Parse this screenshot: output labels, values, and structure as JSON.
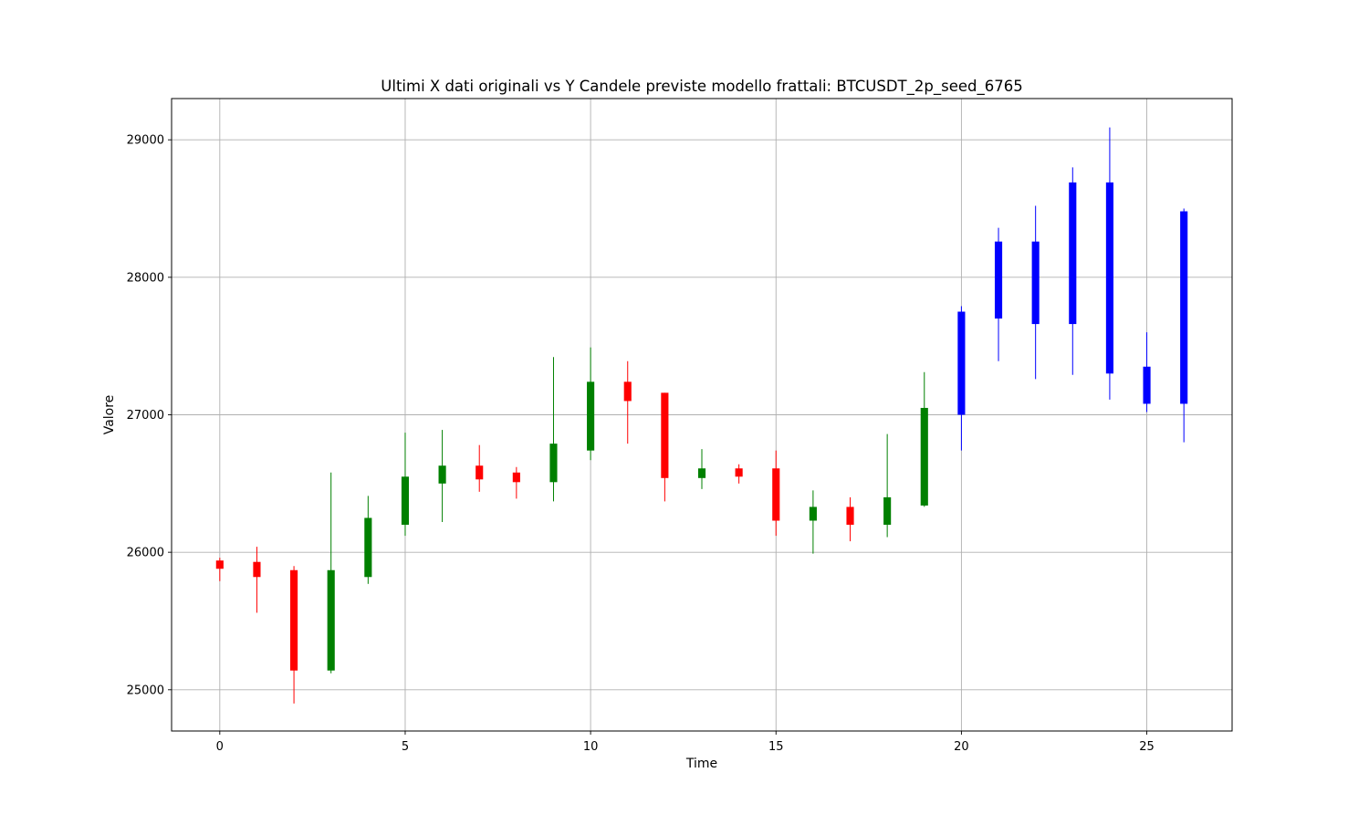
{
  "chart_data": {
    "type": "candlestick",
    "title": "Ultimi X dati originali vs Y Candele previste modello frattali: BTCUSDT_2p_seed_6765",
    "xlabel": "Time",
    "ylabel": "Valore",
    "xlim": [
      -1.3,
      27.3
    ],
    "ylim": [
      24700,
      29300
    ],
    "xticks": [
      0,
      5,
      10,
      15,
      20,
      25
    ],
    "yticks": [
      25000,
      26000,
      27000,
      28000,
      29000
    ],
    "grid": true,
    "colors": {
      "up": "#008000",
      "down": "#ff0000",
      "predicted": "#0000ff"
    },
    "candles": [
      {
        "t": 0,
        "open": 25940,
        "high": 25960,
        "low": 25790,
        "close": 25880,
        "kind": "original"
      },
      {
        "t": 1,
        "open": 25930,
        "high": 26040,
        "low": 25560,
        "close": 25820,
        "kind": "original"
      },
      {
        "t": 2,
        "open": 25870,
        "high": 25900,
        "low": 24900,
        "close": 25140,
        "kind": "original"
      },
      {
        "t": 3,
        "open": 25140,
        "high": 26580,
        "low": 25120,
        "close": 25870,
        "kind": "original"
      },
      {
        "t": 4,
        "open": 25820,
        "high": 26410,
        "low": 25770,
        "close": 26250,
        "kind": "original"
      },
      {
        "t": 5,
        "open": 26200,
        "high": 26870,
        "low": 26120,
        "close": 26550,
        "kind": "original"
      },
      {
        "t": 6,
        "open": 26500,
        "high": 26890,
        "low": 26220,
        "close": 26630,
        "kind": "original"
      },
      {
        "t": 7,
        "open": 26630,
        "high": 26780,
        "low": 26440,
        "close": 26530,
        "kind": "original"
      },
      {
        "t": 8,
        "open": 26580,
        "high": 26620,
        "low": 26390,
        "close": 26510,
        "kind": "original"
      },
      {
        "t": 9,
        "open": 26510,
        "high": 27420,
        "low": 26370,
        "close": 26790,
        "kind": "original"
      },
      {
        "t": 10,
        "open": 26740,
        "high": 27490,
        "low": 26670,
        "close": 27240,
        "kind": "original"
      },
      {
        "t": 11,
        "open": 27240,
        "high": 27390,
        "low": 26790,
        "close": 27100,
        "kind": "original"
      },
      {
        "t": 12,
        "open": 27160,
        "high": 27160,
        "low": 26370,
        "close": 26540,
        "kind": "original"
      },
      {
        "t": 13,
        "open": 26540,
        "high": 26750,
        "low": 26460,
        "close": 26610,
        "kind": "original"
      },
      {
        "t": 14,
        "open": 26610,
        "high": 26640,
        "low": 26500,
        "close": 26550,
        "kind": "original"
      },
      {
        "t": 15,
        "open": 26610,
        "high": 26740,
        "low": 26120,
        "close": 26230,
        "kind": "original"
      },
      {
        "t": 16,
        "open": 26230,
        "high": 26450,
        "low": 25990,
        "close": 26330,
        "kind": "original"
      },
      {
        "t": 17,
        "open": 26330,
        "high": 26400,
        "low": 26080,
        "close": 26200,
        "kind": "original"
      },
      {
        "t": 18,
        "open": 26200,
        "high": 26860,
        "low": 26110,
        "close": 26400,
        "kind": "original"
      },
      {
        "t": 19,
        "open": 26340,
        "high": 27310,
        "low": 26330,
        "close": 27050,
        "kind": "original"
      },
      {
        "t": 20,
        "open": 27000,
        "high": 27790,
        "low": 26740,
        "close": 27750,
        "kind": "predicted"
      },
      {
        "t": 21,
        "open": 27700,
        "high": 28360,
        "low": 27390,
        "close": 28260,
        "kind": "predicted"
      },
      {
        "t": 22,
        "open": 27660,
        "high": 28520,
        "low": 27260,
        "close": 28260,
        "kind": "predicted"
      },
      {
        "t": 23,
        "open": 27660,
        "high": 28800,
        "low": 27290,
        "close": 28690,
        "kind": "predicted"
      },
      {
        "t": 24,
        "open": 27300,
        "high": 29090,
        "low": 27110,
        "close": 28690,
        "kind": "predicted"
      },
      {
        "t": 25,
        "open": 27080,
        "high": 27600,
        "low": 27020,
        "close": 27350,
        "kind": "predicted"
      },
      {
        "t": 26,
        "open": 27080,
        "high": 28500,
        "low": 26800,
        "close": 28480,
        "kind": "predicted"
      }
    ]
  }
}
